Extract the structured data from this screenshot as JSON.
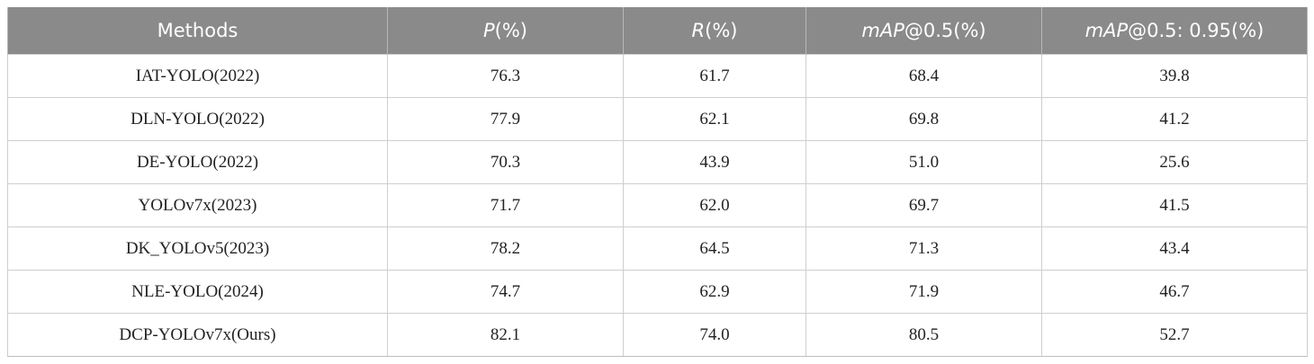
{
  "header": {
    "methods": "Methods",
    "p_var": "P",
    "p_unit": "(%)",
    "r_var": "R",
    "r_unit": "(%)",
    "map50_var": "mAP",
    "map50_rest": "@0.5(%)",
    "map5095_var": "mAP",
    "map5095_rest": "@0.5: 0.95(%)"
  },
  "rows": [
    {
      "method": "IAT-YOLO(2022)",
      "p": "76.3",
      "r": "61.7",
      "map50": "68.4",
      "map5095": "39.8"
    },
    {
      "method": "DLN-YOLO(2022)",
      "p": "77.9",
      "r": "62.1",
      "map50": "69.8",
      "map5095": "41.2"
    },
    {
      "method": "DE-YOLO(2022)",
      "p": "70.3",
      "r": "43.9",
      "map50": "51.0",
      "map5095": "25.6"
    },
    {
      "method": "YOLOv7x(2023)",
      "p": "71.7",
      "r": "62.0",
      "map50": "69.7",
      "map5095": "41.5"
    },
    {
      "method": "DK_YOLOv5(2023)",
      "p": "78.2",
      "r": "64.5",
      "map50": "71.3",
      "map5095": "43.4"
    },
    {
      "method": "NLE-YOLO(2024)",
      "p": "74.7",
      "r": "62.9",
      "map50": "71.9",
      "map5095": "46.7"
    },
    {
      "method": "DCP-YOLOv7x(Ours)",
      "p": "82.1",
      "r": "74.0",
      "map50": "80.5",
      "map5095": "52.7"
    }
  ]
}
